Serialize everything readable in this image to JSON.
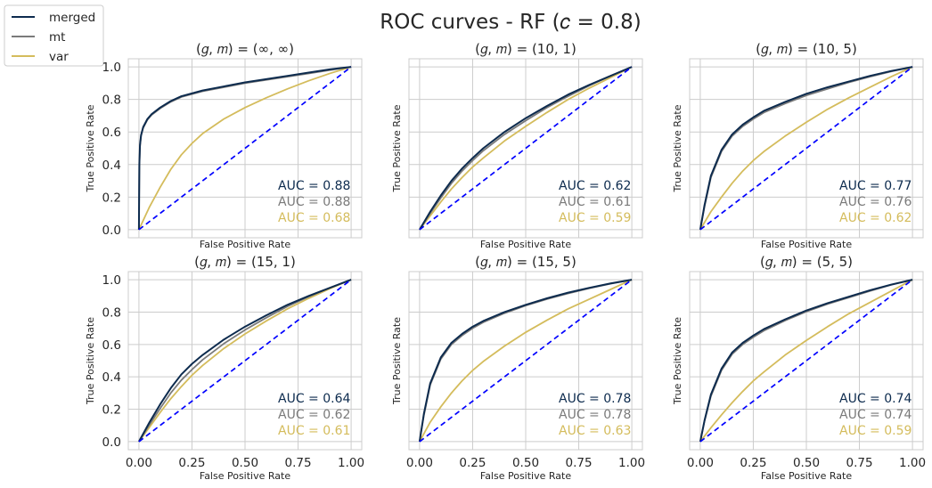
{
  "figure": {
    "title": "ROC curves - RF (𝑐 = 0.8)"
  },
  "legend": {
    "placement": "upper-left",
    "entries": [
      {
        "label": "merged",
        "color": "#0d2b4e"
      },
      {
        "label": "mt",
        "color": "#7a7a7a"
      },
      {
        "label": "var",
        "color": "#d4bc5c"
      }
    ]
  },
  "chart_data": [
    {
      "type": "line",
      "title": "(𝑔, 𝑚) = (∞, ∞)",
      "xlabel": "False Positive Rate",
      "ylabel": "True Positive Rate",
      "xlim": [
        -0.05,
        1.05
      ],
      "ylim": [
        -0.05,
        1.05
      ],
      "xticks": [
        "0.00",
        "0.25",
        "0.50",
        "0.75",
        "1.00"
      ],
      "yticks": [
        "0.0",
        "0.2",
        "0.4",
        "0.6",
        "0.8",
        "1.0"
      ],
      "show_xticks": false,
      "show_yticks": true,
      "grid": true,
      "series": [
        {
          "name": "merged",
          "color": "#0d2b4e",
          "auc_label": "AUC = 0.88",
          "x": [
            0,
            0.002,
            0.005,
            0.01,
            0.02,
            0.04,
            0.06,
            0.1,
            0.15,
            0.2,
            0.3,
            0.4,
            0.5,
            0.6,
            0.7,
            0.8,
            0.9,
            1.0
          ],
          "y": [
            0,
            0.4,
            0.52,
            0.58,
            0.63,
            0.68,
            0.71,
            0.75,
            0.79,
            0.82,
            0.855,
            0.88,
            0.905,
            0.925,
            0.945,
            0.965,
            0.985,
            1.0
          ]
        },
        {
          "name": "mt",
          "color": "#7a7a7a",
          "auc_label": "AUC = 0.88",
          "x": [
            0,
            0.002,
            0.005,
            0.01,
            0.02,
            0.04,
            0.06,
            0.1,
            0.15,
            0.2,
            0.3,
            0.4,
            0.5,
            0.6,
            0.7,
            0.8,
            0.9,
            1.0
          ],
          "y": [
            0,
            0.39,
            0.51,
            0.575,
            0.625,
            0.675,
            0.705,
            0.745,
            0.785,
            0.815,
            0.85,
            0.875,
            0.9,
            0.92,
            0.94,
            0.96,
            0.98,
            1.0
          ]
        },
        {
          "name": "var",
          "color": "#d4bc5c",
          "auc_label": "AUC = 0.68",
          "x": [
            0,
            0.05,
            0.1,
            0.15,
            0.2,
            0.25,
            0.3,
            0.4,
            0.5,
            0.6,
            0.7,
            0.8,
            0.9,
            1.0
          ],
          "y": [
            0,
            0.14,
            0.26,
            0.37,
            0.46,
            0.53,
            0.59,
            0.68,
            0.75,
            0.81,
            0.865,
            0.915,
            0.96,
            1.0
          ]
        }
      ]
    },
    {
      "type": "line",
      "title": "(𝑔, 𝑚) = (10, 1)",
      "xlabel": "False Positive Rate",
      "ylabel": "True Positive Rate",
      "xlim": [
        -0.05,
        1.05
      ],
      "ylim": [
        -0.05,
        1.05
      ],
      "xticks": [
        "0.00",
        "0.25",
        "0.50",
        "0.75",
        "1.00"
      ],
      "yticks": [
        "0.0",
        "0.2",
        "0.4",
        "0.6",
        "0.8",
        "1.0"
      ],
      "show_xticks": false,
      "show_yticks": false,
      "grid": true,
      "series": [
        {
          "name": "merged",
          "color": "#0d2b4e",
          "auc_label": "AUC = 0.62",
          "x": [
            0,
            0.05,
            0.1,
            0.15,
            0.2,
            0.25,
            0.3,
            0.4,
            0.5,
            0.6,
            0.7,
            0.8,
            0.9,
            1.0
          ],
          "y": [
            0,
            0.11,
            0.21,
            0.3,
            0.375,
            0.44,
            0.5,
            0.6,
            0.685,
            0.76,
            0.83,
            0.89,
            0.945,
            1.0
          ]
        },
        {
          "name": "mt",
          "color": "#7a7a7a",
          "auc_label": "AUC = 0.61",
          "x": [
            0,
            0.05,
            0.1,
            0.15,
            0.2,
            0.25,
            0.3,
            0.4,
            0.5,
            0.6,
            0.7,
            0.8,
            0.9,
            1.0
          ],
          "y": [
            0,
            0.1,
            0.195,
            0.285,
            0.36,
            0.425,
            0.485,
            0.585,
            0.67,
            0.75,
            0.82,
            0.885,
            0.945,
            1.0
          ]
        },
        {
          "name": "var",
          "color": "#d4bc5c",
          "auc_label": "AUC = 0.59",
          "x": [
            0,
            0.05,
            0.1,
            0.15,
            0.2,
            0.25,
            0.3,
            0.4,
            0.5,
            0.6,
            0.7,
            0.8,
            0.9,
            1.0
          ],
          "y": [
            0,
            0.085,
            0.17,
            0.25,
            0.32,
            0.385,
            0.44,
            0.545,
            0.635,
            0.72,
            0.8,
            0.87,
            0.935,
            1.0
          ]
        }
      ]
    },
    {
      "type": "line",
      "title": "(𝑔, 𝑚) = (10, 5)",
      "xlabel": "False Positive Rate",
      "ylabel": "True Positive Rate",
      "xlim": [
        -0.05,
        1.05
      ],
      "ylim": [
        -0.05,
        1.05
      ],
      "xticks": [
        "0.00",
        "0.25",
        "0.50",
        "0.75",
        "1.00"
      ],
      "yticks": [
        "0.0",
        "0.2",
        "0.4",
        "0.6",
        "0.8",
        "1.0"
      ],
      "show_xticks": false,
      "show_yticks": false,
      "grid": true,
      "series": [
        {
          "name": "merged",
          "color": "#0d2b4e",
          "auc_label": "AUC = 0.77",
          "x": [
            0,
            0.02,
            0.05,
            0.1,
            0.15,
            0.2,
            0.25,
            0.3,
            0.4,
            0.5,
            0.6,
            0.7,
            0.8,
            0.9,
            1.0
          ],
          "y": [
            0,
            0.15,
            0.33,
            0.49,
            0.585,
            0.645,
            0.69,
            0.73,
            0.785,
            0.835,
            0.875,
            0.91,
            0.945,
            0.975,
            1.0
          ]
        },
        {
          "name": "mt",
          "color": "#7a7a7a",
          "auc_label": "AUC = 0.76",
          "x": [
            0,
            0.02,
            0.05,
            0.1,
            0.15,
            0.2,
            0.25,
            0.3,
            0.4,
            0.5,
            0.6,
            0.7,
            0.8,
            0.9,
            1.0
          ],
          "y": [
            0,
            0.14,
            0.32,
            0.48,
            0.575,
            0.635,
            0.68,
            0.72,
            0.775,
            0.825,
            0.865,
            0.905,
            0.94,
            0.972,
            1.0
          ]
        },
        {
          "name": "var",
          "color": "#d4bc5c",
          "auc_label": "AUC = 0.62",
          "x": [
            0,
            0.05,
            0.1,
            0.15,
            0.2,
            0.25,
            0.3,
            0.4,
            0.5,
            0.6,
            0.7,
            0.8,
            0.9,
            1.0
          ],
          "y": [
            0,
            0.11,
            0.2,
            0.285,
            0.36,
            0.425,
            0.48,
            0.575,
            0.66,
            0.74,
            0.81,
            0.875,
            0.94,
            1.0
          ]
        }
      ]
    },
    {
      "type": "line",
      "title": "(𝑔, 𝑚) = (15, 1)",
      "xlabel": "False Positive Rate",
      "ylabel": "True Positive Rate",
      "xlim": [
        -0.05,
        1.05
      ],
      "ylim": [
        -0.05,
        1.05
      ],
      "xticks": [
        "0.00",
        "0.25",
        "0.50",
        "0.75",
        "1.00"
      ],
      "yticks": [
        "0.0",
        "0.2",
        "0.4",
        "0.6",
        "0.8",
        "1.0"
      ],
      "show_xticks": true,
      "show_yticks": true,
      "grid": true,
      "series": [
        {
          "name": "merged",
          "color": "#0d2b4e",
          "auc_label": "AUC = 0.64",
          "x": [
            0,
            0.05,
            0.1,
            0.15,
            0.2,
            0.25,
            0.3,
            0.4,
            0.5,
            0.6,
            0.7,
            0.8,
            0.9,
            1.0
          ],
          "y": [
            0,
            0.12,
            0.23,
            0.33,
            0.415,
            0.48,
            0.535,
            0.63,
            0.71,
            0.78,
            0.845,
            0.9,
            0.95,
            1.0
          ]
        },
        {
          "name": "mt",
          "color": "#7a7a7a",
          "auc_label": "AUC = 0.62",
          "x": [
            0,
            0.05,
            0.1,
            0.15,
            0.2,
            0.25,
            0.3,
            0.4,
            0.5,
            0.6,
            0.7,
            0.8,
            0.9,
            1.0
          ],
          "y": [
            0,
            0.105,
            0.205,
            0.3,
            0.38,
            0.445,
            0.505,
            0.605,
            0.69,
            0.765,
            0.835,
            0.895,
            0.95,
            1.0
          ]
        },
        {
          "name": "var",
          "color": "#d4bc5c",
          "auc_label": "AUC = 0.61",
          "x": [
            0,
            0.05,
            0.1,
            0.15,
            0.2,
            0.25,
            0.3,
            0.4,
            0.5,
            0.6,
            0.7,
            0.8,
            0.9,
            1.0
          ],
          "y": [
            0,
            0.09,
            0.18,
            0.265,
            0.34,
            0.41,
            0.47,
            0.575,
            0.665,
            0.745,
            0.82,
            0.885,
            0.945,
            1.0
          ]
        }
      ]
    },
    {
      "type": "line",
      "title": "(𝑔, 𝑚) = (15, 5)",
      "xlabel": "False Positive Rate",
      "ylabel": "True Positive Rate",
      "xlim": [
        -0.05,
        1.05
      ],
      "ylim": [
        -0.05,
        1.05
      ],
      "xticks": [
        "0.00",
        "0.25",
        "0.50",
        "0.75",
        "1.00"
      ],
      "yticks": [
        "0.0",
        "0.2",
        "0.4",
        "0.6",
        "0.8",
        "1.0"
      ],
      "show_xticks": true,
      "show_yticks": false,
      "grid": true,
      "series": [
        {
          "name": "merged",
          "color": "#0d2b4e",
          "auc_label": "AUC = 0.78",
          "x": [
            0,
            0.02,
            0.05,
            0.1,
            0.15,
            0.2,
            0.25,
            0.3,
            0.4,
            0.5,
            0.6,
            0.7,
            0.8,
            0.9,
            1.0
          ],
          "y": [
            0,
            0.17,
            0.36,
            0.52,
            0.61,
            0.665,
            0.71,
            0.745,
            0.8,
            0.845,
            0.885,
            0.92,
            0.95,
            0.977,
            1.0
          ]
        },
        {
          "name": "mt",
          "color": "#7a7a7a",
          "auc_label": "AUC = 0.78",
          "x": [
            0,
            0.02,
            0.05,
            0.1,
            0.15,
            0.2,
            0.25,
            0.3,
            0.4,
            0.5,
            0.6,
            0.7,
            0.8,
            0.9,
            1.0
          ],
          "y": [
            0,
            0.16,
            0.35,
            0.51,
            0.6,
            0.655,
            0.7,
            0.737,
            0.793,
            0.84,
            0.88,
            0.915,
            0.947,
            0.975,
            1.0
          ]
        },
        {
          "name": "var",
          "color": "#d4bc5c",
          "auc_label": "AUC = 0.63",
          "x": [
            0,
            0.05,
            0.1,
            0.15,
            0.2,
            0.25,
            0.3,
            0.4,
            0.5,
            0.6,
            0.7,
            0.8,
            0.9,
            1.0
          ],
          "y": [
            0,
            0.12,
            0.215,
            0.3,
            0.375,
            0.44,
            0.495,
            0.59,
            0.675,
            0.75,
            0.82,
            0.88,
            0.94,
            1.0
          ]
        }
      ]
    },
    {
      "type": "line",
      "title": "(𝑔, 𝑚) = (5, 5)",
      "xlabel": "False Positive Rate",
      "ylabel": "True Positive Rate",
      "xlim": [
        -0.05,
        1.05
      ],
      "ylim": [
        -0.05,
        1.05
      ],
      "xticks": [
        "0.00",
        "0.25",
        "0.50",
        "0.75",
        "1.00"
      ],
      "yticks": [
        "0.0",
        "0.2",
        "0.4",
        "0.6",
        "0.8",
        "1.0"
      ],
      "show_xticks": true,
      "show_yticks": false,
      "grid": true,
      "series": [
        {
          "name": "merged",
          "color": "#0d2b4e",
          "auc_label": "AUC = 0.74",
          "x": [
            0,
            0.02,
            0.05,
            0.1,
            0.15,
            0.2,
            0.25,
            0.3,
            0.4,
            0.5,
            0.6,
            0.7,
            0.8,
            0.9,
            1.0
          ],
          "y": [
            0,
            0.13,
            0.29,
            0.45,
            0.55,
            0.61,
            0.655,
            0.695,
            0.755,
            0.81,
            0.855,
            0.895,
            0.935,
            0.97,
            1.0
          ]
        },
        {
          "name": "mt",
          "color": "#7a7a7a",
          "auc_label": "AUC = 0.74",
          "x": [
            0,
            0.02,
            0.05,
            0.1,
            0.15,
            0.2,
            0.25,
            0.3,
            0.4,
            0.5,
            0.6,
            0.7,
            0.8,
            0.9,
            1.0
          ],
          "y": [
            0,
            0.125,
            0.28,
            0.44,
            0.54,
            0.6,
            0.645,
            0.685,
            0.748,
            0.803,
            0.85,
            0.89,
            0.93,
            0.968,
            1.0
          ]
        },
        {
          "name": "var",
          "color": "#d4bc5c",
          "auc_label": "AUC = 0.59",
          "x": [
            0,
            0.05,
            0.1,
            0.15,
            0.2,
            0.25,
            0.3,
            0.4,
            0.5,
            0.6,
            0.7,
            0.8,
            0.9,
            1.0
          ],
          "y": [
            0,
            0.085,
            0.165,
            0.24,
            0.31,
            0.375,
            0.43,
            0.535,
            0.625,
            0.71,
            0.79,
            0.86,
            0.93,
            1.0
          ]
        }
      ]
    }
  ]
}
